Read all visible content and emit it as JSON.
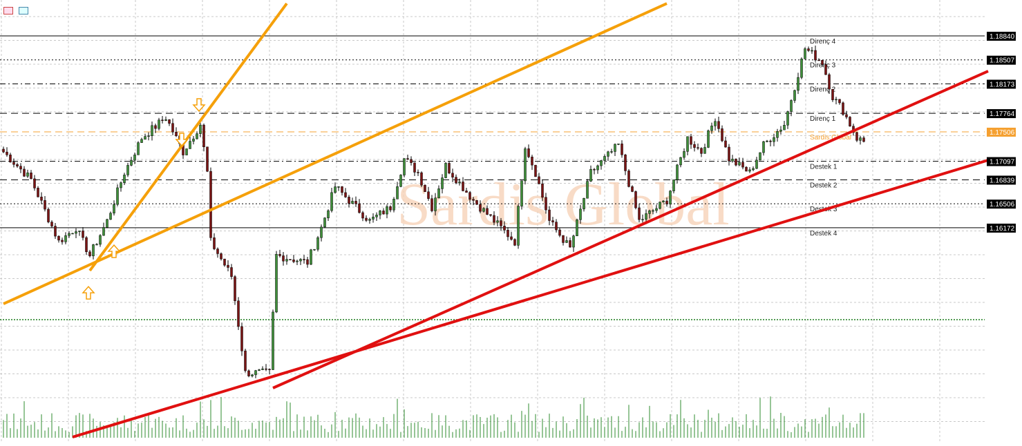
{
  "toolbar": {
    "icons": [
      "list-icon",
      "chart-window-icon"
    ]
  },
  "watermark": "Sardis Global",
  "colors": {
    "bull": "#3f8f3a",
    "bear": "#7a1414",
    "trend_red": "#e01010",
    "trend_orange": "#f5a00a",
    "pivot": "#f5a030",
    "volume": "#2e8b2e",
    "grid": "#c8c8c8",
    "green_level": "#1a7a1a"
  },
  "chart_data": {
    "type": "candlestick",
    "bars": 250,
    "key_closes": [
      {
        "bar": 0,
        "price": 1.17227
      },
      {
        "bar": 8,
        "price": 1.16843
      },
      {
        "bar": 16,
        "price": 1.15979
      },
      {
        "bar": 21,
        "price": 1.16172
      },
      {
        "bar": 25,
        "price": 1.15787
      },
      {
        "bar": 30,
        "price": 1.16267
      },
      {
        "bar": 35,
        "price": 1.16939
      },
      {
        "bar": 40,
        "price": 1.17419
      },
      {
        "bar": 47,
        "price": 1.17707
      },
      {
        "bar": 52,
        "price": 1.17227
      },
      {
        "bar": 57,
        "price": 1.17611
      },
      {
        "bar": 59,
        "price": 1.16939
      },
      {
        "bar": 60,
        "price": 1.15979
      },
      {
        "bar": 66,
        "price": 1.15499
      },
      {
        "bar": 70,
        "price": 1.14155
      },
      {
        "bar": 77,
        "price": 1.14155
      },
      {
        "bar": 79,
        "price": 1.15787
      },
      {
        "bar": 88,
        "price": 1.15691
      },
      {
        "bar": 92,
        "price": 1.16172
      },
      {
        "bar": 96,
        "price": 1.16747
      },
      {
        "bar": 106,
        "price": 1.16267
      },
      {
        "bar": 112,
        "price": 1.16459
      },
      {
        "bar": 116,
        "price": 1.17131
      },
      {
        "bar": 120,
        "price": 1.16939
      },
      {
        "bar": 124,
        "price": 1.16459
      },
      {
        "bar": 128,
        "price": 1.17035
      },
      {
        "bar": 136,
        "price": 1.16555
      },
      {
        "bar": 148,
        "price": 1.15979
      },
      {
        "bar": 151,
        "price": 1.17323
      },
      {
        "bar": 154,
        "price": 1.16939
      },
      {
        "bar": 158,
        "price": 1.16267
      },
      {
        "bar": 164,
        "price": 1.15883
      },
      {
        "bar": 170,
        "price": 1.16939
      },
      {
        "bar": 178,
        "price": 1.17323
      },
      {
        "bar": 184,
        "price": 1.16267
      },
      {
        "bar": 192,
        "price": 1.16555
      },
      {
        "bar": 198,
        "price": 1.17419
      },
      {
        "bar": 202,
        "price": 1.17227
      },
      {
        "bar": 206,
        "price": 1.17707
      },
      {
        "bar": 210,
        "price": 1.17131
      },
      {
        "bar": 216,
        "price": 1.16939
      },
      {
        "bar": 220,
        "price": 1.17323
      },
      {
        "bar": 226,
        "price": 1.17611
      },
      {
        "bar": 232,
        "price": 1.18667
      },
      {
        "bar": 237,
        "price": 1.18475
      },
      {
        "bar": 240,
        "price": 1.17995
      },
      {
        "bar": 243,
        "price": 1.17803
      },
      {
        "bar": 247,
        "price": 1.17419
      },
      {
        "bar": 249,
        "price": 1.17371
      }
    ],
    "levels": [
      {
        "label": "Direnç 4",
        "price": 1.1884,
        "style": "solid",
        "axis_label": "1.18840"
      },
      {
        "label": "Direnç 3",
        "price": 1.18507,
        "style": "dotted",
        "axis_label": "1.18507"
      },
      {
        "label": "Direnç 2",
        "price": 1.18173,
        "style": "dashdot",
        "axis_label": "1.18173"
      },
      {
        "label": "Direnç 1",
        "price": 1.17764,
        "style": "dashed",
        "axis_label": "1.17764"
      },
      {
        "label": "Sardis Global",
        "price": 1.17506,
        "style": "pivot",
        "axis_label": "1.17506"
      },
      {
        "label": "Destek 1",
        "price": 1.17097,
        "style": "dashdot",
        "axis_label": "1.17097"
      },
      {
        "label": "Destek 2",
        "price": 1.16839,
        "style": "dashed",
        "axis_label": "1.16839"
      },
      {
        "label": "Destek 3",
        "price": 1.16506,
        "style": "dotted",
        "axis_label": "1.16506"
      },
      {
        "label": "Destek 4",
        "price": 1.16172,
        "style": "solid",
        "axis_label": "1.16172"
      }
    ],
    "green_level": 1.14894,
    "trendlines": [
      {
        "color": "orange",
        "from": {
          "bar": 25,
          "price": 1.15576
        },
        "to": {
          "bar": 82,
          "price": 1.19291
        }
      },
      {
        "color": "orange",
        "from": {
          "bar": 0,
          "price": 1.15115
        },
        "to": {
          "bar": 192,
          "price": 1.19291
        }
      },
      {
        "color": "red",
        "from": {
          "bar": 78,
          "price": 1.13944
        },
        "to": {
          "bar": 285,
          "price": 1.1835
        }
      },
      {
        "color": "red",
        "from": {
          "bar": 20,
          "price": 1.13262
        },
        "to": {
          "bar": 285,
          "price": 1.17112
        }
      }
    ],
    "arrows": [
      {
        "dir": "up",
        "bar": 24.6,
        "price": 1.15268
      },
      {
        "dir": "up",
        "bar": 32,
        "price": 1.15845
      },
      {
        "dir": "down",
        "bar": 56.6,
        "price": 1.1788
      },
      {
        "dir": "down",
        "bar": 51.6,
        "price": 1.174
      }
    ]
  }
}
